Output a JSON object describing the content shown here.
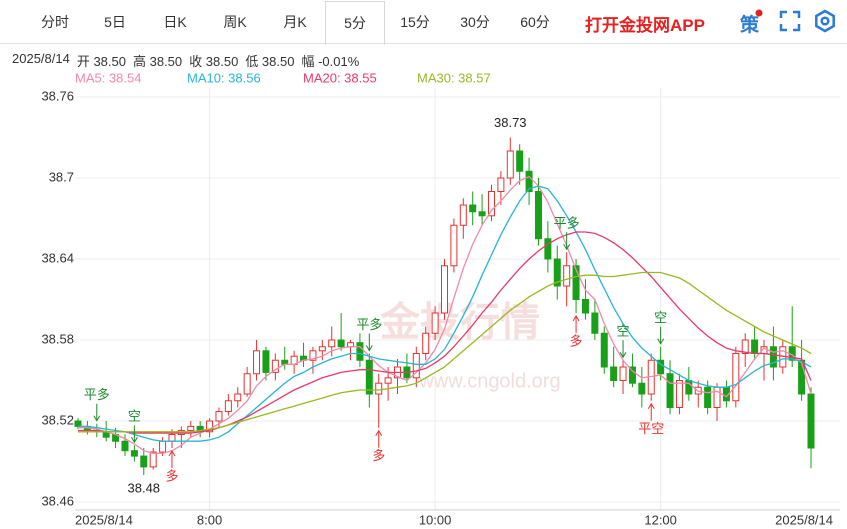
{
  "tabs": [
    "分时",
    "5日",
    "日K",
    "周K",
    "月K",
    "5分",
    "15分",
    "30分",
    "60分"
  ],
  "selected_tab": 5,
  "brand": "打开金投网APP",
  "strategy_icon": "策",
  "info": [
    "2025/8/14",
    "开 38.50",
    "高 38.50",
    "收 38.50",
    "低 38.50",
    "幅 -0.01%"
  ],
  "chart_data": {
    "type": "candlestick",
    "watermark": [
      "金投行情",
      "www.cngold.org"
    ],
    "xlim": [
      0,
      78
    ],
    "xticks": [
      {
        "value": 0,
        "label": "2025/8/14"
      },
      {
        "value": 14,
        "label": "8:00"
      },
      {
        "value": 38,
        "label": "10:00"
      },
      {
        "value": 62,
        "label": "12:00"
      },
      {
        "value": 78,
        "label": "2025/8/14"
      }
    ],
    "ylim": [
      38.46,
      38.76
    ],
    "yticks": [
      38.46,
      38.52,
      38.58,
      38.64,
      38.7,
      38.76
    ],
    "grid": true,
    "up_color": "#e8312f",
    "down_color": "#18a018",
    "open": [
      38.52,
      38.516,
      38.513,
      38.512,
      38.51,
      38.505,
      38.498,
      38.494,
      38.486,
      38.497,
      38.505,
      38.51,
      38.513,
      38.516,
      38.512,
      38.52,
      38.527,
      38.535,
      38.54,
      38.555,
      38.572,
      38.556,
      38.565,
      38.562,
      38.568,
      38.565,
      38.572,
      38.575,
      38.58,
      38.575,
      38.578,
      38.565,
      38.54,
      38.548,
      38.552,
      38.56,
      38.552,
      38.57,
      38.585,
      38.6,
      38.635,
      38.665,
      38.68,
      38.675,
      38.672,
      38.69,
      38.7,
      38.72,
      38.705,
      38.69,
      38.655,
      38.64,
      38.62,
      38.635,
      38.61,
      38.6,
      38.585,
      38.56,
      38.55,
      38.56,
      38.548,
      38.54,
      38.565,
      38.555,
      38.53,
      38.55,
      38.54,
      38.545,
      38.53,
      38.545,
      38.535,
      38.57,
      38.58,
      38.57,
      38.575,
      38.56,
      38.575,
      38.565,
      38.54
    ],
    "high": [
      38.522,
      38.52,
      38.518,
      38.52,
      38.515,
      38.51,
      38.502,
      38.5,
      38.5,
      38.508,
      38.514,
      38.516,
      38.52,
      38.52,
      38.522,
      38.53,
      38.54,
      38.545,
      38.56,
      38.58,
      38.575,
      38.57,
      38.575,
      38.572,
      38.578,
      38.575,
      38.58,
      38.59,
      38.6,
      38.58,
      38.585,
      38.57,
      38.555,
      38.56,
      38.566,
      38.57,
      38.575,
      38.59,
      38.605,
      38.64,
      38.67,
      38.685,
      38.69,
      38.688,
      38.695,
      38.705,
      38.73,
      38.725,
      38.715,
      38.7,
      38.668,
      38.65,
      38.645,
      38.64,
      38.625,
      38.61,
      38.59,
      38.575,
      38.565,
      38.57,
      38.56,
      38.57,
      38.575,
      38.565,
      38.555,
      38.56,
      38.55,
      38.55,
      38.548,
      38.55,
      38.575,
      38.585,
      38.59,
      38.58,
      38.59,
      38.58,
      38.605,
      38.58,
      38.545
    ],
    "low": [
      38.514,
      38.51,
      38.508,
      38.505,
      38.5,
      38.494,
      38.49,
      38.48,
      38.484,
      38.494,
      38.5,
      38.5,
      38.508,
      38.508,
      38.508,
      38.515,
      38.524,
      38.53,
      38.538,
      38.55,
      38.55,
      38.55,
      38.558,
      38.555,
      38.56,
      38.555,
      38.565,
      38.568,
      38.572,
      38.565,
      38.56,
      38.53,
      38.515,
      38.535,
      38.54,
      38.548,
      38.545,
      38.565,
      38.58,
      38.595,
      38.63,
      38.655,
      38.665,
      38.665,
      38.668,
      38.68,
      38.695,
      38.695,
      38.68,
      38.65,
      38.63,
      38.61,
      38.605,
      38.6,
      38.595,
      38.58,
      38.555,
      38.545,
      38.54,
      38.545,
      38.53,
      38.535,
      38.55,
      38.525,
      38.525,
      38.535,
      38.53,
      38.525,
      38.52,
      38.53,
      38.53,
      38.56,
      38.565,
      38.55,
      38.55,
      38.555,
      38.56,
      38.535,
      38.485
    ],
    "close": [
      38.516,
      38.513,
      38.512,
      38.508,
      38.505,
      38.498,
      38.494,
      38.486,
      38.497,
      38.505,
      38.51,
      38.513,
      38.516,
      38.512,
      38.52,
      38.527,
      38.535,
      38.54,
      38.555,
      38.572,
      38.556,
      38.565,
      38.562,
      38.568,
      38.565,
      38.572,
      38.575,
      38.58,
      38.575,
      38.578,
      38.565,
      38.54,
      38.548,
      38.552,
      38.56,
      38.552,
      38.57,
      38.585,
      38.6,
      38.635,
      38.665,
      38.68,
      38.675,
      38.672,
      38.69,
      38.7,
      38.72,
      38.705,
      38.69,
      38.655,
      38.64,
      38.62,
      38.635,
      38.61,
      38.6,
      38.585,
      38.56,
      38.55,
      38.56,
      38.548,
      38.54,
      38.565,
      38.555,
      38.53,
      38.55,
      38.54,
      38.545,
      38.53,
      38.545,
      38.535,
      38.57,
      38.58,
      38.57,
      38.575,
      38.56,
      38.575,
      38.565,
      38.54,
      38.5
    ],
    "ma": [
      {
        "name": "MA5: 38.54",
        "color": "#f08aab",
        "values": [
          38.515,
          38.515,
          38.514,
          38.512,
          38.51,
          38.507,
          38.503,
          38.498,
          38.496,
          38.496,
          38.498,
          38.502,
          38.508,
          38.511,
          38.514,
          38.518,
          38.522,
          38.528,
          38.535,
          38.546,
          38.553,
          38.558,
          38.562,
          38.562,
          38.565,
          38.566,
          38.568,
          38.572,
          38.574,
          38.575,
          38.575,
          38.568,
          38.561,
          38.556,
          38.553,
          38.55,
          38.556,
          38.563,
          38.573,
          38.588,
          38.611,
          38.633,
          38.651,
          38.665,
          38.676,
          38.683,
          38.691,
          38.698,
          38.701,
          38.694,
          38.682,
          38.666,
          38.65,
          38.632,
          38.617,
          38.61,
          38.592,
          38.577,
          38.565,
          38.557,
          38.552,
          38.553,
          38.554,
          38.548,
          38.548,
          38.548,
          38.542,
          38.541,
          38.542,
          38.538,
          38.546,
          38.556,
          38.566,
          38.574,
          38.571,
          38.572,
          38.569,
          38.563,
          38.54
        ]
      },
      {
        "name": "MA10: 38.56",
        "color": "#27b5d3",
        "values": [
          38.516,
          38.516,
          38.515,
          38.514,
          38.513,
          38.512,
          38.51,
          38.508,
          38.506,
          38.505,
          38.505,
          38.505,
          38.505,
          38.505,
          38.506,
          38.508,
          38.512,
          38.518,
          38.524,
          38.53,
          38.536,
          38.542,
          38.548,
          38.553,
          38.556,
          38.56,
          38.563,
          38.566,
          38.568,
          38.57,
          38.57,
          38.568,
          38.566,
          38.565,
          38.564,
          38.563,
          38.562,
          38.562,
          38.566,
          38.573,
          38.585,
          38.598,
          38.612,
          38.628,
          38.643,
          38.658,
          38.671,
          38.683,
          38.692,
          38.694,
          38.692,
          38.683,
          38.672,
          38.66,
          38.647,
          38.632,
          38.618,
          38.604,
          38.592,
          38.582,
          38.574,
          38.568,
          38.562,
          38.558,
          38.554,
          38.55,
          38.548,
          38.546,
          38.545,
          38.545,
          38.547,
          38.552,
          38.557,
          38.561,
          38.563,
          38.566,
          38.566,
          38.564,
          38.56
        ]
      },
      {
        "name": "MA20: 38.55",
        "color": "#e63a6b",
        "values": [
          38.513,
          38.513,
          38.513,
          38.512,
          38.512,
          38.512,
          38.511,
          38.511,
          38.511,
          38.511,
          38.511,
          38.511,
          38.511,
          38.512,
          38.513,
          38.515,
          38.517,
          38.52,
          38.523,
          38.527,
          38.531,
          38.535,
          38.539,
          38.543,
          38.546,
          38.549,
          38.552,
          38.554,
          38.556,
          38.557,
          38.558,
          38.558,
          38.557,
          38.556,
          38.556,
          38.556,
          38.557,
          38.559,
          38.563,
          38.568,
          38.575,
          38.583,
          38.591,
          38.6,
          38.608,
          38.617,
          38.625,
          38.633,
          38.64,
          38.646,
          38.651,
          38.655,
          38.658,
          38.66,
          38.66,
          38.659,
          38.656,
          38.652,
          38.647,
          38.641,
          38.634,
          38.627,
          38.619,
          38.611,
          38.603,
          38.596,
          38.589,
          38.583,
          38.578,
          38.574,
          38.572,
          38.571,
          38.57,
          38.57,
          38.569,
          38.568,
          38.567,
          38.566,
          38.55
        ]
      },
      {
        "name": "MA30: 38.57",
        "color": "#9ab823",
        "values": [
          38.512,
          38.512,
          38.512,
          38.512,
          38.512,
          38.512,
          38.512,
          38.512,
          38.512,
          38.512,
          38.512,
          38.512,
          38.512,
          38.513,
          38.514,
          38.515,
          38.517,
          38.519,
          38.521,
          38.523,
          38.525,
          38.527,
          38.529,
          38.531,
          38.533,
          38.535,
          38.537,
          38.539,
          38.541,
          38.542,
          38.543,
          38.543,
          38.543,
          38.544,
          38.545,
          38.546,
          38.548,
          38.552,
          38.556,
          38.56,
          38.566,
          38.572,
          38.578,
          38.584,
          38.59,
          38.596,
          38.602,
          38.607,
          38.612,
          38.616,
          38.62,
          38.623,
          38.625,
          38.627,
          38.628,
          38.628,
          38.627,
          38.627,
          38.628,
          38.629,
          38.63,
          38.63,
          38.63,
          38.628,
          38.626,
          38.622,
          38.617,
          38.612,
          38.607,
          38.602,
          38.598,
          38.594,
          38.59,
          38.586,
          38.583,
          38.58,
          38.577,
          38.574,
          38.57
        ]
      }
    ],
    "extremes_high": [
      {
        "x": 46,
        "value": 38.73
      }
    ],
    "extremes_low": [
      {
        "x": 7,
        "value": 38.48
      }
    ],
    "signals_above_color": "#1a8a2a",
    "signals_below_color": "#e8312f",
    "signals_above": [
      {
        "x": 2,
        "label": "平多"
      },
      {
        "x": 6,
        "label": "空"
      },
      {
        "x": 31,
        "label": "平多"
      },
      {
        "x": 52,
        "label": "平多"
      },
      {
        "x": 58,
        "label": "空"
      },
      {
        "x": 62,
        "label": "空"
      }
    ],
    "signals_below": [
      {
        "x": 10,
        "label": "多"
      },
      {
        "x": 32,
        "label": "多"
      },
      {
        "x": 53,
        "label": "多"
      },
      {
        "x": 61,
        "label": "平空"
      }
    ]
  }
}
